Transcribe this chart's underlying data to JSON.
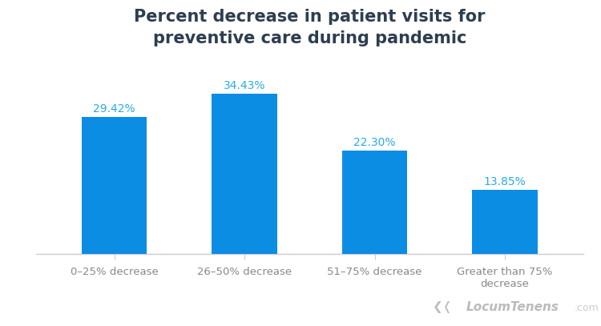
{
  "categories": [
    "0–25% decrease",
    "26–50% decrease",
    "51–75% decrease",
    "Greater than 75%\ndecrease"
  ],
  "values": [
    29.42,
    34.43,
    22.3,
    13.85
  ],
  "bar_color": "#0c8de4",
  "value_labels": [
    "29.42%",
    "34.43%",
    "22.30%",
    "13.85%"
  ],
  "value_label_color": "#29abe2",
  "title_line1": "Percent decrease in patient visits for",
  "title_line2": "preventive care during pandemic",
  "title_color": "#2d3e50",
  "title_fontsize": 15,
  "background_color": "#ffffff",
  "bar_width": 0.5,
  "ylim": [
    0,
    42
  ],
  "axis_line_color": "#cccccc",
  "tick_label_color": "#888888",
  "tick_label_fontsize": 9.5,
  "value_label_fontsize": 10,
  "logo_main_color": "#bbbbbb",
  "logo_com_color": "#cccccc",
  "logo_text": "LocumTenens",
  "logo_com": ".com"
}
